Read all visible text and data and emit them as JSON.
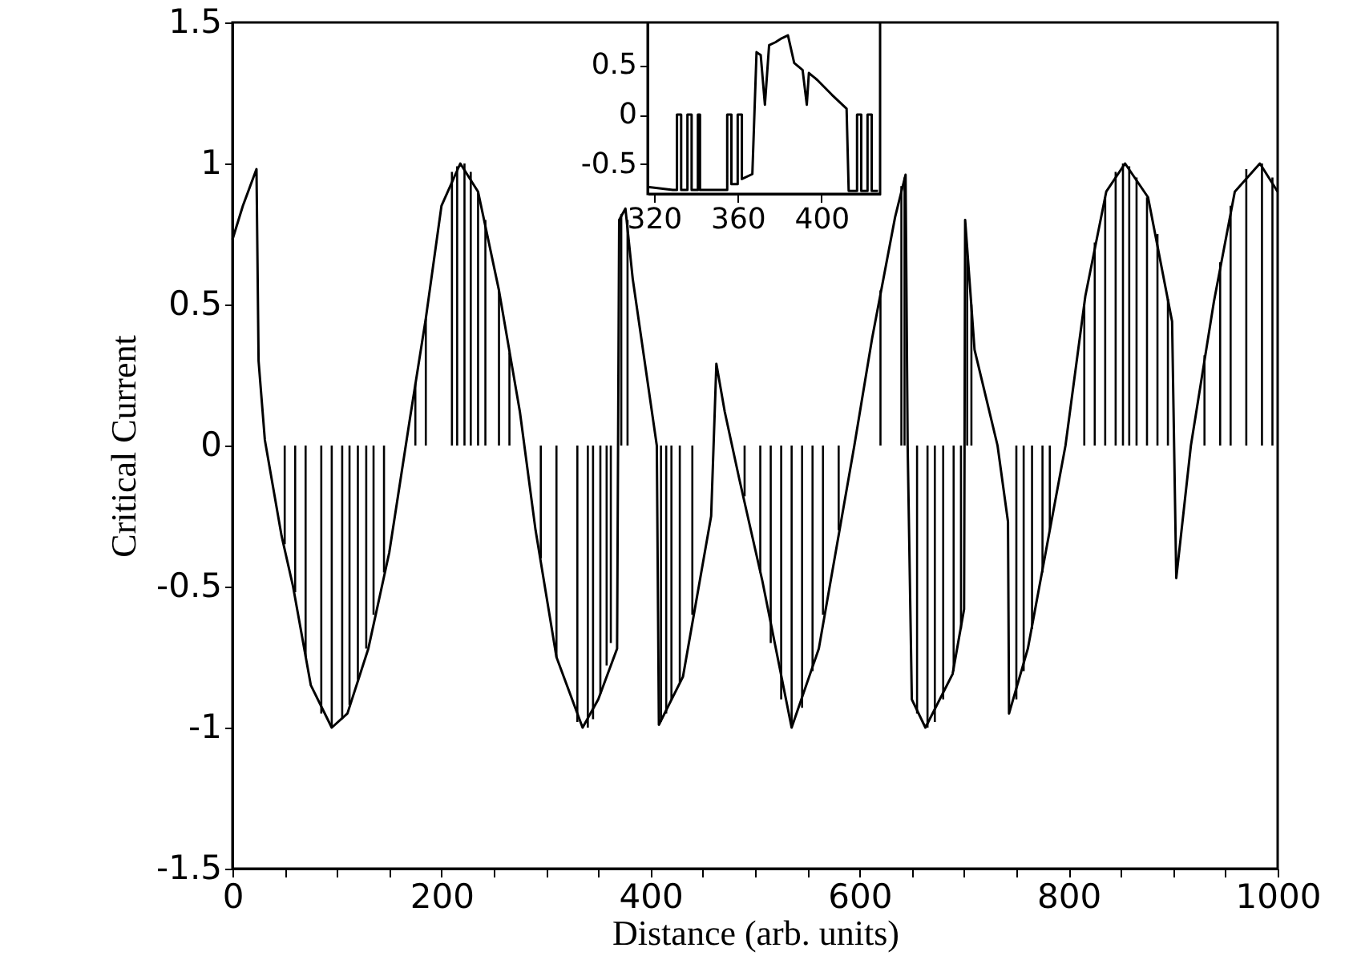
{
  "chart_data": [
    {
      "type": "line",
      "xlabel": "Distance (arb. units)",
      "ylabel": "Critical Current",
      "xlim": [
        0,
        1000
      ],
      "ylim": [
        -1.5,
        1.5
      ],
      "xticks": [
        0,
        {
          "value": 50,
          "label": null
        },
        {
          "value": 100,
          "label": null
        },
        {
          "value": 150,
          "label": null
        },
        200,
        {
          "value": 250,
          "label": null
        },
        {
          "value": 300,
          "label": null
        },
        {
          "value": 350,
          "label": null
        },
        400,
        {
          "value": 450,
          "label": null
        },
        {
          "value": 500,
          "label": null
        },
        {
          "value": 550,
          "label": null
        },
        600,
        {
          "value": 650,
          "label": null
        },
        {
          "value": 700,
          "label": null
        },
        {
          "value": 750,
          "label": null
        },
        800,
        {
          "value": 850,
          "label": null
        },
        {
          "value": 900,
          "label": null
        },
        {
          "value": 950,
          "label": null
        },
        1000
      ],
      "yticks": [
        -1.5,
        -1,
        -0.5,
        0,
        0.5,
        1,
        1.5
      ],
      "grid": false,
      "series": [
        {
          "color": "#000000",
          "x": [
            0,
            10,
            23,
            25,
            31,
            47,
            58,
            75,
            95,
            110,
            130,
            150,
            170,
            185,
            200,
            218,
            235,
            255,
            275,
            290,
            310,
            335,
            350,
            368,
            370,
            376,
            383,
            406,
            408,
            431,
            458,
            463,
            471,
            485,
            507,
            535,
            561,
            595,
            612,
            634,
            644,
            646,
            650,
            663,
            689,
            700,
            701,
            710,
            732,
            742,
            743,
            761,
            778,
            797,
            816,
            836,
            854,
            876,
            899,
            903,
            917,
            939,
            959,
            983,
            1000
          ],
          "values": [
            0.73,
            0.85,
            0.98,
            0.3,
            0.02,
            -0.32,
            -0.5,
            -0.85,
            -1.0,
            -0.95,
            -0.72,
            -0.38,
            0.1,
            0.45,
            0.85,
            1.0,
            0.9,
            0.55,
            0.12,
            -0.3,
            -0.75,
            -1.0,
            -0.9,
            -0.72,
            0.8,
            0.84,
            0.59,
            0.0,
            -0.99,
            -0.82,
            -0.25,
            0.29,
            0.12,
            -0.12,
            -0.48,
            -1.0,
            -0.72,
            0.0,
            0.38,
            0.81,
            0.96,
            0.0,
            -0.9,
            -1.0,
            -0.81,
            -0.58,
            0.8,
            0.34,
            0.0,
            -0.27,
            -0.95,
            -0.72,
            -0.38,
            0.0,
            0.53,
            0.9,
            1.0,
            0.88,
            0.44,
            -0.47,
            0.0,
            0.51,
            0.9,
            1.0,
            0.9
          ]
        },
        {
          "type": "bar",
          "color": "#000000",
          "x": [
            50,
            60,
            70,
            85,
            95,
            105,
            112,
            120,
            128,
            135,
            145,
            175,
            185,
            210,
            215,
            222,
            228,
            235,
            242,
            255,
            265,
            295,
            310,
            330,
            340,
            345,
            352,
            358,
            362,
            372,
            378,
            410,
            415,
            420,
            428,
            440,
            490,
            505,
            515,
            525,
            535,
            545,
            555,
            565,
            580,
            620,
            640,
            643,
            655,
            665,
            672,
            680,
            690,
            697,
            703,
            707,
            750,
            757,
            765,
            775,
            782,
            815,
            825,
            835,
            845,
            852,
            858,
            865,
            875,
            885,
            895,
            930,
            945,
            955,
            970,
            985,
            995
          ],
          "values": [
            -0.35,
            -0.52,
            -0.75,
            -0.95,
            -1.0,
            -0.97,
            -0.92,
            -0.83,
            -0.72,
            -0.6,
            -0.45,
            0.22,
            0.45,
            0.97,
            0.99,
            1.0,
            0.97,
            0.9,
            0.8,
            0.55,
            0.33,
            -0.4,
            -0.75,
            -0.98,
            -1.0,
            -0.97,
            -0.88,
            -0.78,
            -0.7,
            0.82,
            0.8,
            -0.98,
            -0.95,
            -0.9,
            -0.84,
            -0.6,
            -0.18,
            -0.45,
            -0.7,
            -0.9,
            -0.99,
            -0.93,
            -0.8,
            -0.6,
            -0.3,
            0.55,
            0.92,
            0.95,
            -0.95,
            -1.0,
            -0.98,
            -0.9,
            -0.8,
            -0.65,
            0.7,
            0.5,
            -0.9,
            -0.8,
            -0.65,
            -0.45,
            -0.3,
            0.5,
            0.72,
            0.88,
            0.97,
            1.0,
            0.99,
            0.95,
            0.88,
            0.75,
            0.52,
            0.32,
            0.65,
            0.85,
            0.98,
            1.0,
            0.95
          ]
        }
      ]
    },
    {
      "type": "line",
      "xlim": [
        317,
        428
      ],
      "ylim": [
        -0.8,
        0.93
      ],
      "xticks": [
        320,
        360,
        400
      ],
      "yticks": [
        -0.5,
        0,
        0.5
      ],
      "grid": false,
      "series": [
        {
          "color": "#000000",
          "x": [
            317,
            329,
            331,
            331,
            333,
            333,
            336,
            336,
            338,
            338,
            341,
            341,
            342,
            342,
            355,
            355,
            357,
            357,
            360,
            360,
            362,
            362,
            367,
            369,
            371,
            373,
            375,
            378,
            381,
            384,
            387,
            391,
            393,
            394,
            398,
            405,
            412,
            413,
            417,
            417,
            419,
            419,
            422,
            422,
            424,
            424,
            427
          ],
          "values": [
            -0.73,
            -0.76,
            -0.76,
            0,
            0,
            -0.76,
            -0.76,
            0,
            0,
            -0.76,
            -0.76,
            0,
            0,
            -0.76,
            -0.76,
            0,
            0,
            -0.7,
            -0.7,
            0,
            0,
            -0.65,
            -0.6,
            0.63,
            0.6,
            0.1,
            0.7,
            0.73,
            0.77,
            0.8,
            0.52,
            0.45,
            0.1,
            0.42,
            0.35,
            0.2,
            0.06,
            -0.77,
            -0.77,
            0,
            0,
            -0.77,
            -0.77,
            0,
            0,
            -0.77,
            -0.77
          ]
        }
      ]
    }
  ]
}
